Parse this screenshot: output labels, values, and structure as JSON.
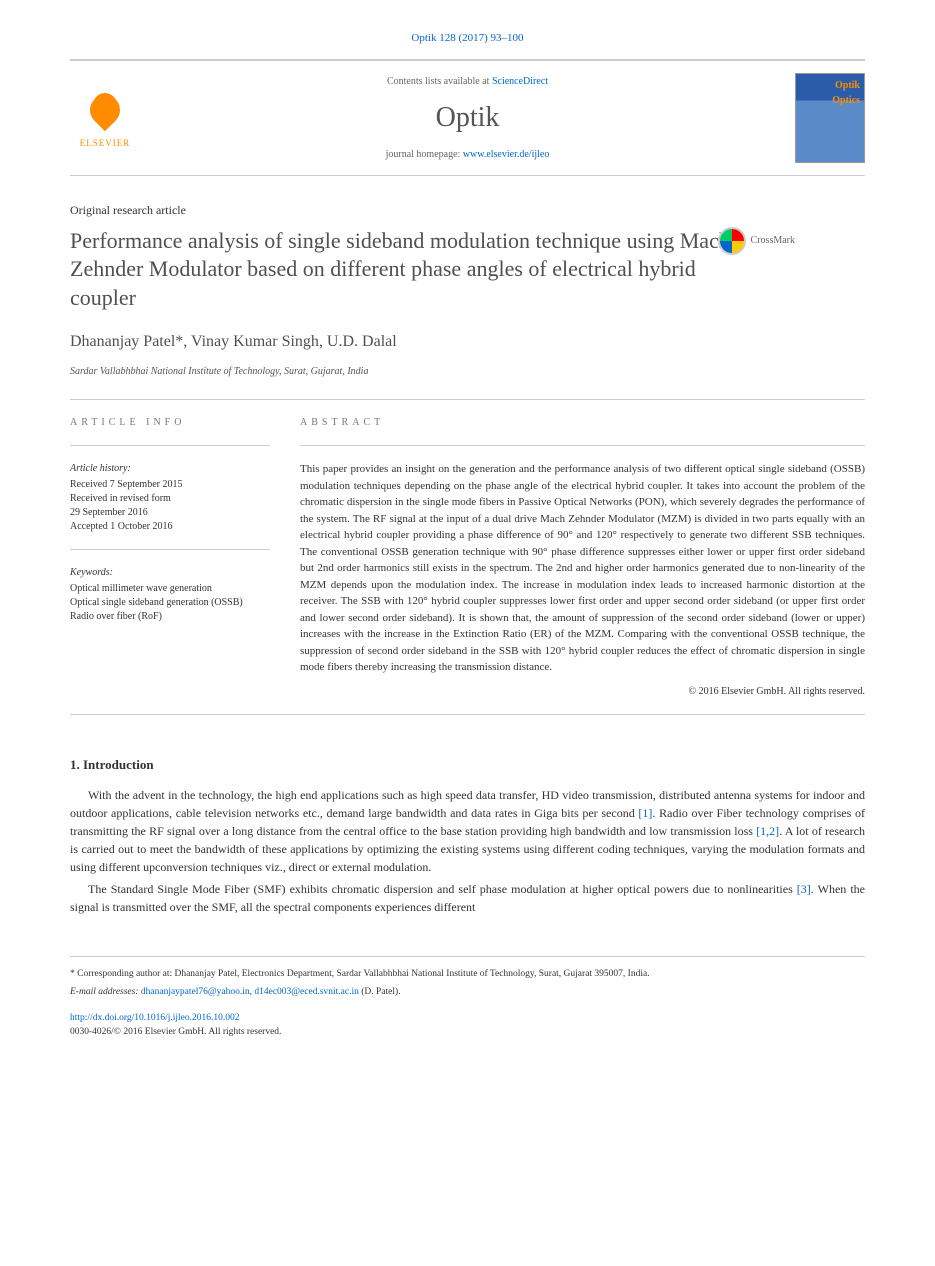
{
  "citation": "Optik 128 (2017) 93–100",
  "header": {
    "contentsText": "Contents lists available at ",
    "contentsLink": "ScienceDirect",
    "journalTitle": "Optik",
    "homepageText": "journal homepage: ",
    "homepageLink": "www.elsevier.de/ijleo",
    "publisherName": "ELSEVIER"
  },
  "crossmark": "CrossMark",
  "articleType": "Original research article",
  "title": "Performance analysis of single sideband modulation technique using Mach Zehnder Modulator based on different phase angles of electrical hybrid coupler",
  "authors": "Dhananjay Patel*, Vinay Kumar Singh, U.D. Dalal",
  "affiliation": "Sardar Vallabhbhai National Institute of Technology, Surat, Gujarat, India",
  "articleInfo": {
    "heading": "ARTICLE INFO",
    "historyTitle": "Article history:",
    "received": "Received 7 September 2015",
    "revisedForm": "Received in revised form",
    "revisedDate": "29 September 2016",
    "accepted": "Accepted 1 October 2016",
    "keywordsTitle": "Keywords:",
    "kw1": "Optical millimeter wave generation",
    "kw2": "Optical single sideband generation (OSSB)",
    "kw3": "Radio over fiber (RoF)"
  },
  "abstract": {
    "heading": "ABSTRACT",
    "text": "This paper provides an insight on the generation and the performance analysis of two different optical single sideband (OSSB) modulation techniques depending on the phase angle of the electrical hybrid coupler. It takes into account the problem of the chromatic dispersion in the single mode fibers in Passive Optical Networks (PON), which severely degrades the performance of the system. The RF signal at the input of a dual drive Mach Zehnder Modulator (MZM) is divided in two parts equally with an electrical hybrid coupler providing a phase difference of 90° and 120° respectively to generate two different SSB techniques. The conventional OSSB generation technique with 90° phase difference suppresses either lower or upper first order sideband but 2nd order harmonics still exists in the spectrum. The 2nd and higher order harmonics generated due to non-linearity of the MZM depends upon the modulation index. The increase in modulation index leads to increased harmonic distortion at the receiver. The SSB with 120° hybrid coupler suppresses lower first order and upper second order sideband (or upper first order and lower second order sideband). It is shown that, the amount of suppression of the second order sideband (lower or upper) increases with the increase in the Extinction Ratio (ER) of the MZM. Comparing with the conventional OSSB technique, the suppression of second order sideband in the SSB with 120° hybrid coupler reduces the effect of chromatic dispersion in single mode fibers thereby increasing the transmission distance.",
    "copyright": "© 2016 Elsevier GmbH. All rights reserved."
  },
  "intro": {
    "heading": "1. Introduction",
    "para1_a": "With the advent in the technology, the high end applications such as high speed data transfer, HD video transmission, distributed antenna systems for indoor and outdoor applications, cable television networks etc., demand large bandwidth and data rates in Giga bits per second ",
    "para1_cite1": "[1]",
    "para1_b": ". Radio over Fiber technology comprises of transmitting the RF signal over a long distance from the central office to the base station providing high bandwidth and low transmission loss ",
    "para1_cite2": "[1,2]",
    "para1_c": ". A lot of research is carried out to meet the bandwidth of these applications by optimizing the existing systems using different coding techniques, varying the modulation formats and using different upconversion techniques viz., direct or external modulation.",
    "para2_a": "The Standard Single Mode Fiber (SMF) exhibits chromatic dispersion and self phase modulation at higher optical powers due to nonlinearities ",
    "para2_cite1": "[3]",
    "para2_b": ". When the signal is transmitted over the SMF, all the spectral components experiences different"
  },
  "footer": {
    "correspondingLabel": "* Corresponding author at: ",
    "correspondingText": "Dhananjay Patel, Electronics Department, Sardar Vallabhbhai National Institute of Technology, Surat, Gujarat 395007, India.",
    "emailLabel": "E-mail addresses: ",
    "email1": "dhananjaypatel76@yahoo.in",
    "emailSep": ", ",
    "email2": "d14ec003@eced.svnit.ac.in",
    "emailAuthor": " (D. Patel).",
    "doi": "http://dx.doi.org/10.1016/j.ijleo.2016.10.002",
    "issn": "0030-4026/© 2016 Elsevier GmbH. All rights reserved."
  },
  "colors": {
    "linkColor": "#0066cc",
    "textColor": "#333333",
    "headingColor": "#505050",
    "mutedColor": "#666666",
    "orangeAccent": "#ff8c00",
    "borderColor": "#cccccc"
  },
  "typography": {
    "bodyFontSize": 13,
    "titleFontSize": 22,
    "journalTitleFontSize": 28,
    "abstractFontSize": 11,
    "smallFontSize": 10
  }
}
